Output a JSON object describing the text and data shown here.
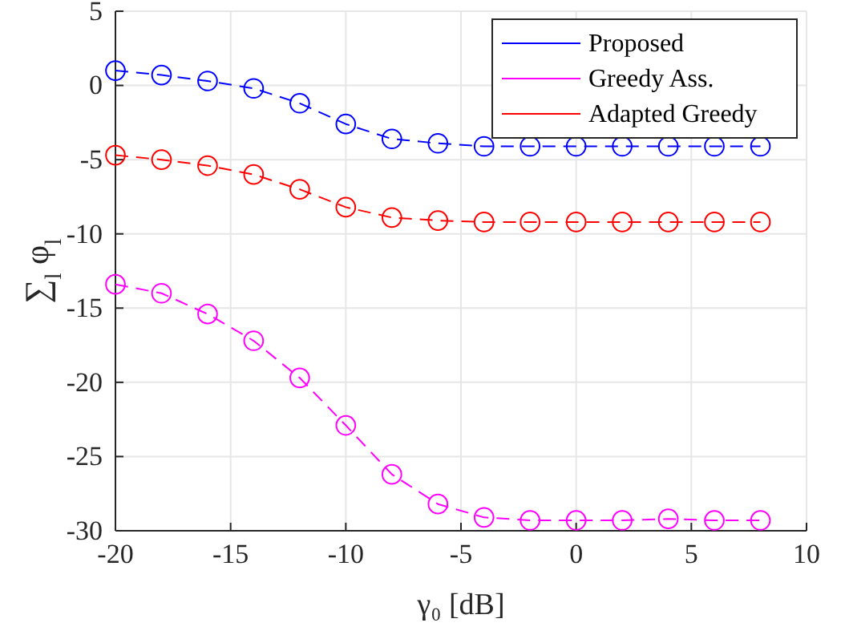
{
  "chart_data": {
    "type": "line",
    "xlabel": "γ₀ [dB]",
    "ylabel": "∑$_{l}$ φ$_{l}$",
    "x": [
      -20,
      -18,
      -16,
      -14,
      -12,
      -10,
      -8,
      -6,
      -4,
      -2,
      0,
      2,
      4,
      6,
      8
    ],
    "series": [
      {
        "name": "Proposed",
        "color": "#0000ff",
        "values": [
          1.0,
          0.7,
          0.3,
          -0.2,
          -1.2,
          -2.6,
          -3.6,
          -3.9,
          -4.1,
          -4.1,
          -4.1,
          -4.1,
          -4.1,
          -4.1,
          -4.1
        ]
      },
      {
        "name": "Greedy Ass.",
        "color": "#ff00ff",
        "values": [
          -13.4,
          -14.0,
          -15.4,
          -17.2,
          -19.7,
          -22.9,
          -26.2,
          -28.2,
          -29.1,
          -29.3,
          -29.3,
          -29.3,
          -29.2,
          -29.3,
          -29.3
        ]
      },
      {
        "name": "Adapted Greedy",
        "color": "#ff0000",
        "values": [
          -4.7,
          -5.0,
          -5.4,
          -6.0,
          -7.0,
          -8.2,
          -8.9,
          -9.1,
          -9.2,
          -9.2,
          -9.2,
          -9.2,
          -9.2,
          -9.2,
          -9.2
        ]
      }
    ],
    "xlim": [
      -20,
      10
    ],
    "xticks": [
      -20,
      -15,
      -10,
      -5,
      0,
      5,
      10
    ],
    "ylim": [
      -30,
      5
    ],
    "yticks": [
      -30,
      -25,
      -20,
      -15,
      -10,
      -5,
      0,
      5
    ],
    "grid": true,
    "legend": "top right",
    "marker": "circle",
    "line_style": "dashed"
  }
}
